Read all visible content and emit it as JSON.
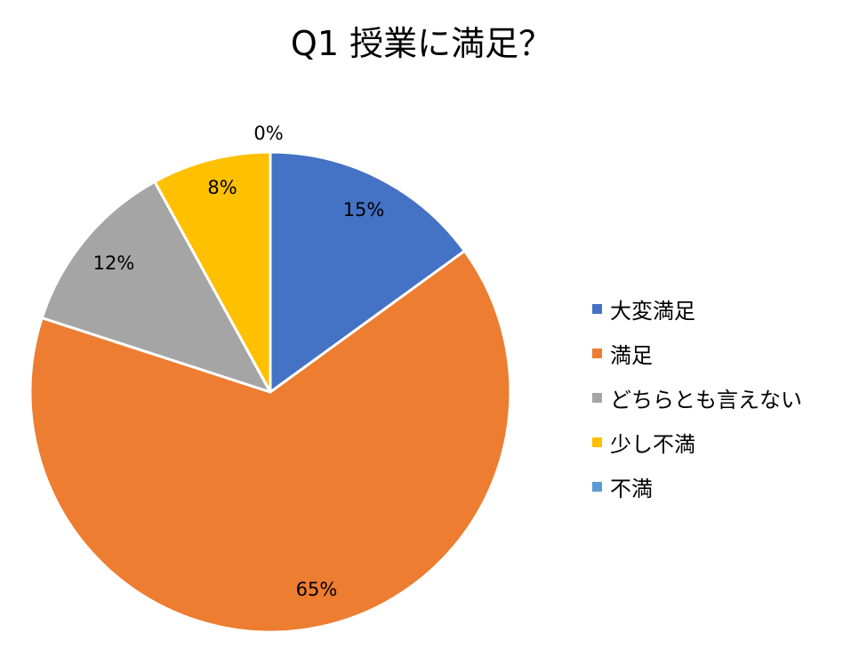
{
  "chart_data": {
    "type": "pie",
    "title": "Q1 授業に満足？",
    "categories": [
      "大変満足",
      "満足",
      "どちらとも言えない",
      "少し不満",
      "不満"
    ],
    "values": [
      15,
      65,
      12,
      8,
      0
    ],
    "value_labels": [
      "15%",
      "65%",
      "12%",
      "8%",
      "0%"
    ],
    "colors": [
      "#4472C4",
      "#ED7D31",
      "#A5A5A5",
      "#FFC000",
      "#5B9BD5"
    ],
    "legend_position": "right"
  }
}
